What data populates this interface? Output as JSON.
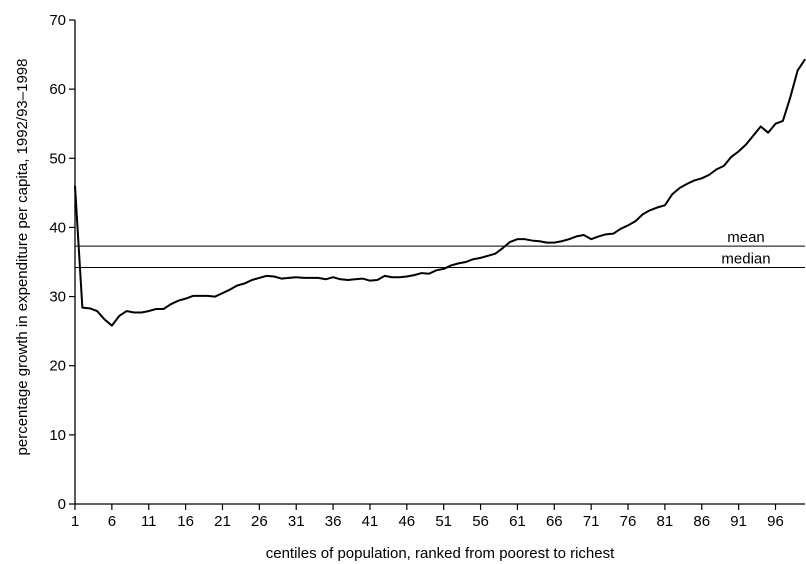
{
  "chart_data": {
    "type": "line",
    "title": "",
    "xlabel": "centiles of population, ranked from poorest to richest",
    "ylabel": "percentage growth in expenditure per capita, 1992/93–1998",
    "xlim": [
      1,
      100
    ],
    "ylim": [
      0,
      70
    ],
    "x_ticks": [
      1,
      6,
      11,
      16,
      21,
      26,
      31,
      36,
      41,
      46,
      51,
      56,
      61,
      66,
      71,
      76,
      81,
      86,
      91,
      96
    ],
    "y_ticks": [
      0,
      10,
      20,
      30,
      40,
      50,
      60,
      70
    ],
    "grid": false,
    "series": [
      {
        "x": [
          1,
          2,
          3,
          4,
          5,
          6,
          7,
          8,
          9,
          10,
          11,
          12,
          13,
          14,
          15,
          16,
          17,
          18,
          19,
          20,
          21,
          22,
          23,
          24,
          25,
          26,
          27,
          28,
          29,
          30,
          31,
          32,
          33,
          34,
          35,
          36,
          37,
          38,
          39,
          40,
          41,
          42,
          43,
          44,
          45,
          46,
          47,
          48,
          49,
          50,
          51,
          52,
          53,
          54,
          55,
          56,
          57,
          58,
          59,
          60,
          61,
          62,
          63,
          64,
          65,
          66,
          67,
          68,
          69,
          70,
          71,
          72,
          73,
          74,
          75,
          76,
          77,
          78,
          79,
          80,
          81,
          82,
          83,
          84,
          85,
          86,
          87,
          88,
          89,
          90,
          91,
          92,
          93,
          94,
          95,
          96,
          97,
          98,
          99,
          100
        ],
        "y": [
          46.0,
          28.4,
          28.3,
          27.9,
          26.7,
          25.8,
          27.2,
          27.9,
          27.7,
          27.7,
          27.9,
          28.2,
          28.2,
          28.9,
          29.4,
          29.7,
          30.1,
          30.1,
          30.1,
          30.0,
          30.5,
          31.0,
          31.6,
          31.9,
          32.4,
          32.7,
          33.0,
          32.9,
          32.6,
          32.7,
          32.8,
          32.7,
          32.7,
          32.7,
          32.5,
          32.8,
          32.5,
          32.4,
          32.5,
          32.6,
          32.3,
          32.4,
          33.0,
          32.8,
          32.8,
          32.9,
          33.1,
          33.4,
          33.3,
          33.8,
          34.0,
          34.5,
          34.8,
          35.0,
          35.4,
          35.6,
          35.9,
          36.2,
          37.0,
          37.9,
          38.3,
          38.3,
          38.1,
          38.0,
          37.8,
          37.8,
          38.0,
          38.3,
          38.7,
          38.9,
          38.3,
          38.7,
          39.0,
          39.1,
          39.8,
          40.3,
          40.9,
          41.9,
          42.5,
          42.9,
          43.2,
          44.8,
          45.7,
          46.3,
          46.8,
          47.1,
          47.6,
          48.4,
          48.9,
          50.2,
          51.0,
          52.0,
          53.3,
          54.6,
          53.7,
          55.0,
          55.4,
          58.8,
          62.7,
          64.3
        ]
      }
    ],
    "reference_lines": [
      {
        "label": "mean",
        "value": 37.3
      },
      {
        "label": "median",
        "value": 34.2
      }
    ]
  }
}
